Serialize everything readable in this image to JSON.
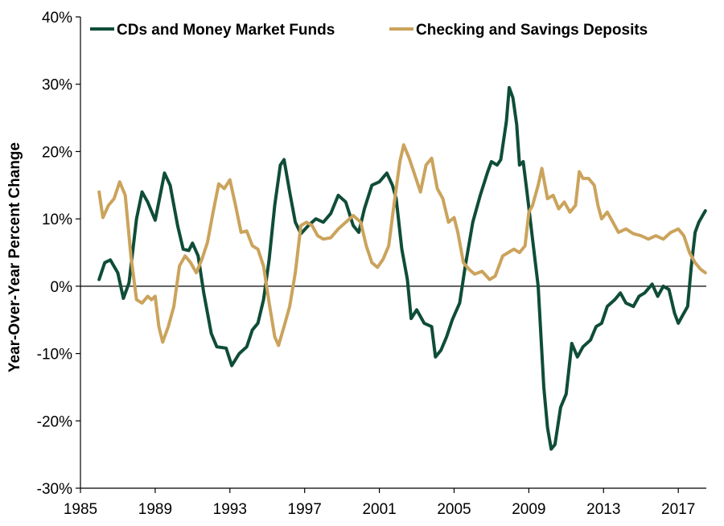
{
  "chart_data": {
    "type": "line",
    "title": "",
    "xlabel": "",
    "ylabel": "Year-Over-Year  Percent Change",
    "xlim": [
      1985,
      2018.5
    ],
    "ylim": [
      -30,
      40
    ],
    "x_ticks": [
      1985,
      1989,
      1993,
      1997,
      2001,
      2005,
      2009,
      2013,
      2017
    ],
    "x_tick_labels": [
      "1985",
      "1989",
      "1993",
      "1997",
      "2001",
      "2005",
      "2009",
      "2013",
      "2017"
    ],
    "y_ticks": [
      -30,
      -20,
      -10,
      0,
      10,
      20,
      30,
      40
    ],
    "y_tick_labels": [
      "-30%",
      "-20%",
      "-10%",
      "0%",
      "10%",
      "20%",
      "30%",
      "40%"
    ],
    "grid": false,
    "legend_position": "top",
    "series": [
      {
        "name": "CDs and Money Market Funds",
        "color": "#0f4d38",
        "points": [
          [
            1986.0,
            1.0
          ],
          [
            1986.3,
            3.5
          ],
          [
            1986.6,
            3.9
          ],
          [
            1987.0,
            2.0
          ],
          [
            1987.3,
            -1.8
          ],
          [
            1987.6,
            0.5
          ],
          [
            1988.0,
            10.0
          ],
          [
            1988.3,
            14.0
          ],
          [
            1988.6,
            12.5
          ],
          [
            1989.0,
            9.8
          ],
          [
            1989.3,
            14.0
          ],
          [
            1989.5,
            16.8
          ],
          [
            1989.8,
            15.0
          ],
          [
            1990.2,
            9.0
          ],
          [
            1990.5,
            5.5
          ],
          [
            1990.8,
            5.3
          ],
          [
            1991.0,
            6.4
          ],
          [
            1991.3,
            4.5
          ],
          [
            1991.6,
            -1.0
          ],
          [
            1992.0,
            -7.0
          ],
          [
            1992.3,
            -9.0
          ],
          [
            1992.8,
            -9.2
          ],
          [
            1993.1,
            -11.8
          ],
          [
            1993.5,
            -10.0
          ],
          [
            1993.9,
            -9.0
          ],
          [
            1994.2,
            -6.5
          ],
          [
            1994.5,
            -5.5
          ],
          [
            1994.8,
            -2.0
          ],
          [
            1995.1,
            4.0
          ],
          [
            1995.4,
            12.0
          ],
          [
            1995.7,
            18.0
          ],
          [
            1995.9,
            18.8
          ],
          [
            1996.2,
            14.0
          ],
          [
            1996.5,
            9.5
          ],
          [
            1996.8,
            7.8
          ],
          [
            1997.2,
            9.0
          ],
          [
            1997.6,
            10.0
          ],
          [
            1998.0,
            9.5
          ],
          [
            1998.4,
            10.8
          ],
          [
            1998.8,
            13.5
          ],
          [
            1999.2,
            12.5
          ],
          [
            1999.6,
            9.0
          ],
          [
            1999.9,
            8.0
          ],
          [
            2000.2,
            11.5
          ],
          [
            2000.6,
            15.0
          ],
          [
            2001.0,
            15.5
          ],
          [
            2001.4,
            16.8
          ],
          [
            2001.7,
            15.0
          ],
          [
            2001.9,
            13.0
          ],
          [
            2002.2,
            5.5
          ],
          [
            2002.5,
            1.0
          ],
          [
            2002.7,
            -4.8
          ],
          [
            2003.0,
            -3.5
          ],
          [
            2003.4,
            -5.5
          ],
          [
            2003.8,
            -6.0
          ],
          [
            2004.0,
            -10.5
          ],
          [
            2004.3,
            -9.5
          ],
          [
            2004.6,
            -7.5
          ],
          [
            2004.9,
            -5.0
          ],
          [
            2005.3,
            -2.5
          ],
          [
            2005.6,
            3.0
          ],
          [
            2006.0,
            9.5
          ],
          [
            2006.4,
            13.5
          ],
          [
            2006.8,
            17.0
          ],
          [
            2007.0,
            18.5
          ],
          [
            2007.3,
            18.0
          ],
          [
            2007.5,
            18.8
          ],
          [
            2007.8,
            24.5
          ],
          [
            2007.95,
            29.5
          ],
          [
            2008.15,
            28.0
          ],
          [
            2008.35,
            24.0
          ],
          [
            2008.5,
            18.0
          ],
          [
            2008.7,
            18.5
          ],
          [
            2008.9,
            14.0
          ],
          [
            2009.2,
            7.0
          ],
          [
            2009.5,
            0.0
          ],
          [
            2009.8,
            -15.0
          ],
          [
            2010.0,
            -21.0
          ],
          [
            2010.2,
            -24.2
          ],
          [
            2010.4,
            -23.5
          ],
          [
            2010.7,
            -18.0
          ],
          [
            2011.0,
            -16.0
          ],
          [
            2011.3,
            -8.5
          ],
          [
            2011.6,
            -10.5
          ],
          [
            2011.9,
            -9.0
          ],
          [
            2012.3,
            -8.0
          ],
          [
            2012.6,
            -6.0
          ],
          [
            2012.9,
            -5.5
          ],
          [
            2013.2,
            -3.0
          ],
          [
            2013.6,
            -2.0
          ],
          [
            2013.9,
            -1.0
          ],
          [
            2014.2,
            -2.5
          ],
          [
            2014.6,
            -3.0
          ],
          [
            2014.9,
            -1.5
          ],
          [
            2015.2,
            -1.0
          ],
          [
            2015.6,
            0.3
          ],
          [
            2015.9,
            -1.5
          ],
          [
            2016.2,
            0.0
          ],
          [
            2016.5,
            -0.5
          ],
          [
            2016.8,
            -4.0
          ],
          [
            2017.0,
            -5.5
          ],
          [
            2017.2,
            -4.5
          ],
          [
            2017.5,
            -3.0
          ],
          [
            2017.7,
            3.0
          ],
          [
            2017.9,
            8.0
          ],
          [
            2018.1,
            9.5
          ],
          [
            2018.3,
            10.5
          ],
          [
            2018.45,
            11.2
          ]
        ]
      },
      {
        "name": "Checking and Savings Deposits",
        "color": "#cba35c",
        "points": [
          [
            1986.0,
            14.0
          ],
          [
            1986.2,
            10.2
          ],
          [
            1986.5,
            12.0
          ],
          [
            1986.8,
            13.0
          ],
          [
            1987.1,
            15.5
          ],
          [
            1987.4,
            13.5
          ],
          [
            1987.7,
            4.5
          ],
          [
            1988.0,
            -2.0
          ],
          [
            1988.3,
            -2.5
          ],
          [
            1988.6,
            -1.5
          ],
          [
            1988.8,
            -2.0
          ],
          [
            1989.0,
            -1.5
          ],
          [
            1989.2,
            -6.0
          ],
          [
            1989.4,
            -8.3
          ],
          [
            1989.7,
            -6.0
          ],
          [
            1990.0,
            -3.0
          ],
          [
            1990.3,
            3.0
          ],
          [
            1990.6,
            4.5
          ],
          [
            1990.9,
            3.5
          ],
          [
            1991.2,
            2.0
          ],
          [
            1991.5,
            4.0
          ],
          [
            1991.8,
            6.5
          ],
          [
            1992.1,
            11.0
          ],
          [
            1992.4,
            15.2
          ],
          [
            1992.7,
            14.5
          ],
          [
            1993.0,
            15.8
          ],
          [
            1993.3,
            12.0
          ],
          [
            1993.6,
            8.0
          ],
          [
            1993.9,
            8.2
          ],
          [
            1994.2,
            6.0
          ],
          [
            1994.5,
            5.5
          ],
          [
            1994.8,
            3.0
          ],
          [
            1995.1,
            -2.5
          ],
          [
            1995.4,
            -7.5
          ],
          [
            1995.6,
            -8.8
          ],
          [
            1995.9,
            -6.0
          ],
          [
            1996.2,
            -3.0
          ],
          [
            1996.5,
            2.0
          ],
          [
            1996.8,
            9.0
          ],
          [
            1997.1,
            9.5
          ],
          [
            1997.4,
            9.0
          ],
          [
            1997.7,
            7.5
          ],
          [
            1998.0,
            7.0
          ],
          [
            1998.4,
            7.2
          ],
          [
            1998.8,
            8.5
          ],
          [
            1999.2,
            9.5
          ],
          [
            1999.6,
            10.5
          ],
          [
            2000.0,
            9.5
          ],
          [
            2000.3,
            6.0
          ],
          [
            2000.6,
            3.5
          ],
          [
            2000.9,
            2.8
          ],
          [
            2001.2,
            4.0
          ],
          [
            2001.5,
            6.0
          ],
          [
            2001.8,
            12.5
          ],
          [
            2002.1,
            18.5
          ],
          [
            2002.3,
            21.0
          ],
          [
            2002.6,
            19.0
          ],
          [
            2002.9,
            16.5
          ],
          [
            2003.2,
            14.0
          ],
          [
            2003.5,
            18.0
          ],
          [
            2003.8,
            19.0
          ],
          [
            2004.1,
            14.5
          ],
          [
            2004.4,
            13.0
          ],
          [
            2004.7,
            9.5
          ],
          [
            2005.0,
            10.2
          ],
          [
            2005.2,
            8.0
          ],
          [
            2005.5,
            3.5
          ],
          [
            2005.8,
            2.5
          ],
          [
            2006.1,
            1.8
          ],
          [
            2006.5,
            2.2
          ],
          [
            2006.9,
            1.0
          ],
          [
            2007.2,
            1.5
          ],
          [
            2007.6,
            4.5
          ],
          [
            2007.9,
            5.0
          ],
          [
            2008.2,
            5.5
          ],
          [
            2008.5,
            5.0
          ],
          [
            2008.8,
            6.0
          ],
          [
            2009.0,
            11.0
          ],
          [
            2009.2,
            12.0
          ],
          [
            2009.5,
            15.0
          ],
          [
            2009.7,
            17.5
          ],
          [
            2010.0,
            13.0
          ],
          [
            2010.3,
            13.5
          ],
          [
            2010.6,
            11.5
          ],
          [
            2010.9,
            12.5
          ],
          [
            2011.2,
            11.0
          ],
          [
            2011.5,
            12.0
          ],
          [
            2011.7,
            17.0
          ],
          [
            2011.9,
            16.0
          ],
          [
            2012.2,
            16.0
          ],
          [
            2012.5,
            15.0
          ],
          [
            2012.7,
            12.0
          ],
          [
            2012.9,
            10.0
          ],
          [
            2013.2,
            11.0
          ],
          [
            2013.5,
            9.5
          ],
          [
            2013.8,
            8.0
          ],
          [
            2014.2,
            8.5
          ],
          [
            2014.6,
            7.8
          ],
          [
            2015.0,
            7.5
          ],
          [
            2015.4,
            7.0
          ],
          [
            2015.8,
            7.5
          ],
          [
            2016.2,
            7.0
          ],
          [
            2016.6,
            8.0
          ],
          [
            2017.0,
            8.5
          ],
          [
            2017.3,
            7.5
          ],
          [
            2017.6,
            5.0
          ],
          [
            2017.9,
            3.5
          ],
          [
            2018.2,
            2.5
          ],
          [
            2018.45,
            2.0
          ]
        ]
      }
    ]
  }
}
